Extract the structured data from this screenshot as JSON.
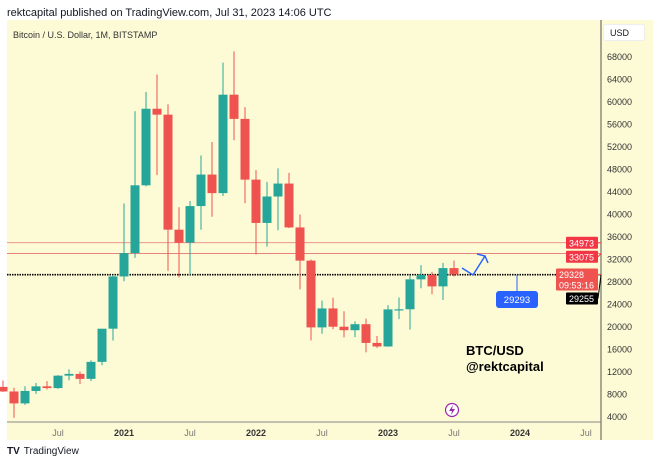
{
  "header": {
    "published": "rektcapital published on TradingView.com, Jul 31, 2023 14:06 UTC",
    "symbol": "Bitcoin / U.S. Dollar, 1M, BITSTAMP",
    "currency": "USD"
  },
  "footer": {
    "brand": "TradingView"
  },
  "annotations": {
    "line1": "BTC/USD",
    "line2": "@rektcapital",
    "callout": "29293"
  },
  "colors": {
    "up": "#26a69a",
    "down": "#ef5350",
    "background": "#fdfbd6",
    "annotation": "#2962ff",
    "level": "#e57373"
  },
  "chart_data": {
    "type": "candlestick",
    "ylim": [
      4000,
      68000
    ],
    "yticks": [
      4000,
      8000,
      12000,
      16000,
      20000,
      24000,
      28000,
      32000,
      36000,
      40000,
      44000,
      48000,
      52000,
      56000,
      60000,
      64000,
      68000
    ],
    "xticks": [
      {
        "label": "Jul",
        "month": "2020-07"
      },
      {
        "label": "2021",
        "month": "2021-01"
      },
      {
        "label": "Jul",
        "month": "2021-07"
      },
      {
        "label": "2022",
        "month": "2022-01"
      },
      {
        "label": "Jul",
        "month": "2022-07"
      },
      {
        "label": "2023",
        "month": "2023-01"
      },
      {
        "label": "Jul",
        "month": "2023-07"
      },
      {
        "label": "2024",
        "month": "2024-01"
      },
      {
        "label": "Jul",
        "month": "2024-07"
      }
    ],
    "candles": [
      [
        "2020-02",
        9350,
        10500,
        8450,
        8540
      ],
      [
        "2020-03",
        8540,
        9190,
        3850,
        6420
      ],
      [
        "2020-04",
        6420,
        9460,
        6150,
        8630
      ],
      [
        "2020-05",
        8630,
        10070,
        8120,
        9450
      ],
      [
        "2020-06",
        9450,
        10380,
        8900,
        9140
      ],
      [
        "2020-07",
        9140,
        11440,
        8990,
        11350
      ],
      [
        "2020-08",
        11350,
        12470,
        10540,
        11660
      ],
      [
        "2020-09",
        11660,
        12080,
        9850,
        10780
      ],
      [
        "2020-10",
        10780,
        14100,
        10400,
        13800
      ],
      [
        "2020-11",
        13800,
        19480,
        13200,
        19700
      ],
      [
        "2020-12",
        19700,
        29300,
        17600,
        28990
      ],
      [
        "2021-01",
        28990,
        41950,
        28130,
        33140
      ],
      [
        "2021-02",
        33140,
        58350,
        32300,
        45190
      ],
      [
        "2021-03",
        45190,
        61790,
        45000,
        58800
      ],
      [
        "2021-04",
        58800,
        64900,
        47000,
        57750
      ],
      [
        "2021-05",
        57750,
        59600,
        30000,
        37300
      ],
      [
        "2021-06",
        37300,
        41300,
        28800,
        35000
      ],
      [
        "2021-07",
        35000,
        42400,
        29300,
        41500
      ],
      [
        "2021-08",
        41500,
        50500,
        37300,
        47100
      ],
      [
        "2021-09",
        47100,
        52900,
        39600,
        43800
      ],
      [
        "2021-10",
        43800,
        67000,
        43300,
        61300
      ],
      [
        "2021-11",
        61300,
        69000,
        53200,
        57000
      ],
      [
        "2021-12",
        57000,
        59100,
        42000,
        46200
      ],
      [
        "2022-01",
        46200,
        47900,
        32900,
        38500
      ],
      [
        "2022-02",
        38500,
        45800,
        34300,
        43200
      ],
      [
        "2022-03",
        43200,
        48200,
        37200,
        45500
      ],
      [
        "2022-04",
        45500,
        47400,
        37600,
        37700
      ],
      [
        "2022-05",
        37700,
        40000,
        26700,
        31800
      ],
      [
        "2022-06",
        31800,
        32000,
        17600,
        19930
      ],
      [
        "2022-07",
        19930,
        24700,
        18800,
        23300
      ],
      [
        "2022-08",
        23300,
        25200,
        19600,
        20050
      ],
      [
        "2022-09",
        20050,
        22800,
        18150,
        19430
      ],
      [
        "2022-10",
        19430,
        21000,
        18200,
        20500
      ],
      [
        "2022-11",
        20500,
        21500,
        15500,
        17170
      ],
      [
        "2022-12",
        17170,
        18400,
        16300,
        16540
      ],
      [
        "2023-01",
        16540,
        23900,
        16500,
        23130
      ],
      [
        "2023-02",
        23130,
        25250,
        21400,
        23150
      ],
      [
        "2023-03",
        23150,
        29200,
        19550,
        28470
      ],
      [
        "2023-04",
        28470,
        31000,
        26900,
        29250
      ],
      [
        "2023-05",
        29250,
        29800,
        25800,
        27220
      ],
      [
        "2023-06",
        27220,
        31400,
        24800,
        30470
      ],
      [
        "2023-07",
        30470,
        31800,
        29000,
        29328
      ]
    ],
    "levels": [
      {
        "value": 34973,
        "color": "#e57373"
      },
      {
        "value": 33075,
        "color": "#e57373"
      },
      {
        "value": 29293,
        "color": "#000000",
        "style": "dotted"
      }
    ],
    "price_labels": [
      {
        "text": "34973",
        "value": 34973,
        "bg": "#f23645"
      },
      {
        "text": "33075",
        "value": 33075,
        "bg": "#f23645"
      },
      {
        "text": "29328",
        "sub": "09:53:16",
        "value": 29328,
        "bg": "#ef5350"
      },
      {
        "text": "29255",
        "value": 29255,
        "bg": "#000000"
      }
    ]
  }
}
